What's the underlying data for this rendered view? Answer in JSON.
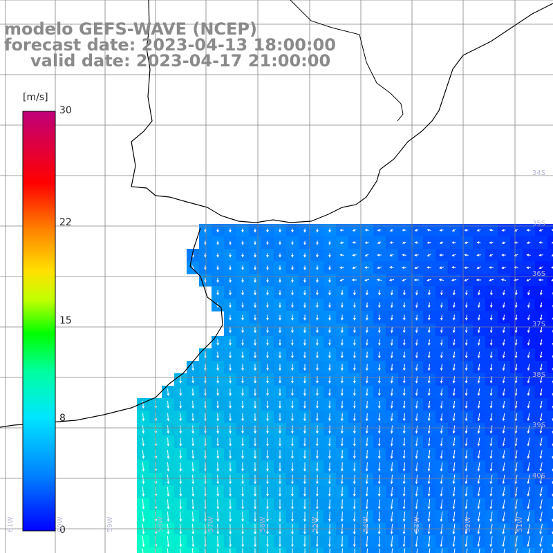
{
  "title": {
    "line1": "modelo GEFS-WAVE (NCEP)",
    "line2": "forecast date: 2023-04-13 18:00:00",
    "line3": "valid date: 2023-04-17 21:00:00"
  },
  "colorbar": {
    "unit": "[m/s]",
    "ticks": [
      "30",
      "22",
      "15",
      "8",
      "0"
    ],
    "tick_values": [
      30,
      22,
      15,
      8,
      0
    ],
    "min": 0,
    "max": 30,
    "colors": [
      "#0000ff",
      "#00bfff",
      "#00ffff",
      "#00ff00",
      "#ffff00",
      "#ff8000",
      "#ff0000",
      "#c00080"
    ]
  },
  "map": {
    "land_color": "#ffffff",
    "coast_color": "#000000",
    "grid_color": "#808080",
    "lat_labels": [
      "34S",
      "35S",
      "36S",
      "37S",
      "38S",
      "39S",
      "40S"
    ],
    "lat_values": [
      -34,
      -35,
      -36,
      -37,
      -38,
      -39,
      -40
    ],
    "lon_labels": [
      "61W",
      "60W",
      "59W",
      "58W",
      "57W",
      "56W",
      "55W",
      "54W",
      "53W",
      "52W",
      "51W"
    ],
    "lon_values": [
      -61,
      -60,
      -59,
      -58,
      -57,
      -56,
      -55,
      -54,
      -53,
      -52,
      -51
    ]
  }
}
